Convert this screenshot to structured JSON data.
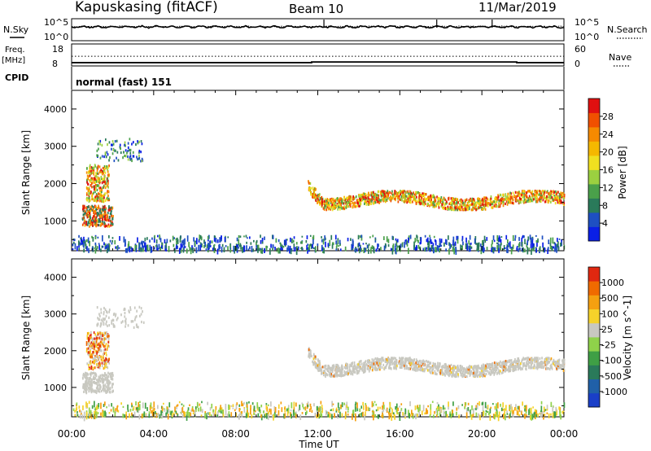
{
  "header": {
    "station": "Kapuskasing (fitACF)",
    "beam": "Beam 10",
    "date": "11/Mar/2019"
  },
  "legend_labels": {
    "nsky": "N.Sky",
    "nsearch": "N.Search",
    "freq": "Freq.",
    "freq_unit": "[MHz]",
    "nave": "Nave",
    "cpid": "CPID",
    "cpid_value": "normal (fast) 151"
  },
  "chart_data": {
    "type": "heatmap",
    "x_axis": {
      "label": "Time UT",
      "ticks": [
        "00:00",
        "04:00",
        "08:00",
        "12:00",
        "16:00",
        "20:00",
        "00:00"
      ],
      "range_hours": [
        0,
        24
      ]
    },
    "noise_panel": {
      "left_ticks": [
        "10^5",
        "10^0"
      ],
      "right_ticks": [
        "10^5",
        "10^0"
      ]
    },
    "freq_panel": {
      "left_ticks": [
        "18",
        "8"
      ],
      "right_ticks": [
        "60",
        "0"
      ],
      "freq_mhz_level": 10.3,
      "freq_step_hour": 11.7,
      "nave_level": 28
    },
    "panels": [
      {
        "name": "power",
        "ylabel": "Slant Range [km]",
        "yticks": [
          "1000",
          "2000",
          "3000",
          "4000"
        ],
        "ylim": [
          200,
          4500
        ],
        "colorbar_label": "Power [dB]",
        "colorbar_ticks": [
          "4",
          "8",
          "12",
          "16",
          "20",
          "24",
          "28"
        ],
        "colorbar_range": [
          0,
          32
        ],
        "colors": [
          "#0a1fe6",
          "#1e4fc2",
          "#2a7a5a",
          "#4aa04a",
          "#9bd040",
          "#f0e020",
          "#f5b800",
          "#f58a00",
          "#f05000",
          "#e01010"
        ]
      },
      {
        "name": "velocity",
        "ylabel": "Slant Range [km]",
        "yticks": [
          "1000",
          "2000",
          "3000",
          "4000"
        ],
        "ylim": [
          200,
          4500
        ],
        "colorbar_label": "Velocity [m s^-1]",
        "colorbar_ticks": [
          "1000",
          "500",
          "100",
          "25",
          "-25",
          "-100",
          "-500",
          "-1000"
        ],
        "colors": [
          "#1a3fc8",
          "#2060a8",
          "#2a7a5a",
          "#3f9f45",
          "#8fd24a",
          "#c8c8c0",
          "#f5d22a",
          "#f5a010",
          "#f06a00",
          "#e02810"
        ]
      }
    ],
    "scatter_regions": [
      {
        "t": [
          0.5,
          2.0
        ],
        "r": [
          850,
          1400
        ],
        "kind": "blob_low"
      },
      {
        "t": [
          0.7,
          1.8
        ],
        "r": [
          1500,
          2500
        ],
        "kind": "blob_high"
      },
      {
        "t": [
          1.2,
          3.5
        ],
        "r": [
          2600,
          3200
        ],
        "kind": "sparse_far"
      },
      {
        "t": [
          11.5,
          24.0
        ],
        "r": [
          1300,
          1800
        ],
        "kind": "band"
      },
      {
        "t": [
          0.0,
          24.0
        ],
        "r": [
          200,
          600
        ],
        "kind": "near"
      }
    ]
  }
}
